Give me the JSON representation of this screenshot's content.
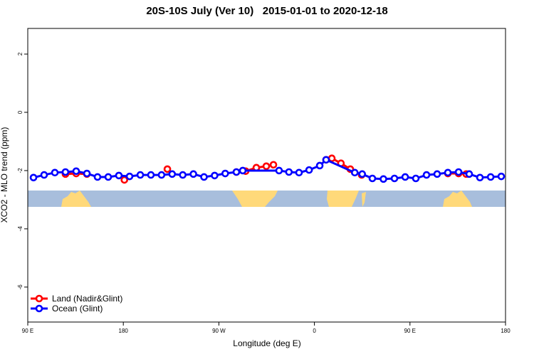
{
  "chart_data": {
    "type": "line",
    "title": "20S-10S July (Ver 10)   2015-01-01 to 2020-12-18",
    "x_label": "Longitude (deg E)",
    "y_label": "XCO2 - MLO trend (ppm)",
    "xlim": [
      90,
      540
    ],
    "ylim": [
      -7.2,
      2.88
    ],
    "xticks": [
      {
        "value": 90,
        "label": "90 E"
      },
      180,
      {
        "value": 270,
        "label": "90 W"
      },
      {
        "value": 360,
        "label": "0"
      },
      {
        "value": 450,
        "label": "90 E"
      },
      {
        "value": 540,
        "label": "180"
      }
    ],
    "yticks": [
      2,
      0,
      -2,
      -4,
      -6
    ],
    "legend": "bottomleft",
    "series": [
      {
        "name": "Land (Nadir&Glint)",
        "color": "#ff0000",
        "x": [
          125.5,
          135.6,
          145.7,
          null,
          181,
          null,
          221.5,
          null,
          286.5,
          295.2,
          305.3,
          314.7,
          321.4,
          null,
          371,
          376.4,
          385,
          393.8,
          404.5,
          null,
          485.7,
          495.8,
          503
        ],
        "values": [
          -2.12,
          -2.1,
          -2.12,
          null,
          -2.32,
          null,
          -1.95,
          null,
          -2.05,
          -2.02,
          -1.9,
          -1.85,
          -1.8,
          null,
          -1.63,
          -1.58,
          -1.75,
          -1.95,
          -2.15,
          null,
          -2.1,
          -2.1,
          -2.12
        ]
      },
      {
        "name": "Ocean (Glint)",
        "color": "#0000ff",
        "x": [
          95.4,
          105.4,
          115.5,
          125.5,
          135.6,
          145.7,
          155.7,
          165.8,
          175.8,
          185.9,
          196,
          206,
          216,
          226,
          236,
          246,
          256,
          266,
          276,
          286.5,
          292.5,
          326.7,
          336,
          345.5,
          355,
          365,
          371,
          398,
          405,
          414.6,
          425,
          435.4,
          445.5,
          455.5,
          465.6,
          475.6,
          485.7,
          495.8,
          505.8,
          515.9,
          526,
          536
        ],
        "values": [
          -2.24,
          -2.15,
          -2.07,
          -2.05,
          -2.02,
          -2.1,
          -2.22,
          -2.22,
          -2.17,
          -2.2,
          -2.15,
          -2.15,
          -2.15,
          -2.12,
          -2.15,
          -2.12,
          -2.22,
          -2.17,
          -2.1,
          -2.05,
          -2.0,
          -2.0,
          -2.05,
          -2.07,
          -1.98,
          -1.83,
          -1.63,
          -2.07,
          -2.12,
          -2.27,
          -2.29,
          -2.27,
          -2.22,
          -2.27,
          -2.15,
          -2.12,
          -2.07,
          -2.05,
          -2.12,
          -2.24,
          -2.22,
          -2.2
        ]
      }
    ]
  }
}
